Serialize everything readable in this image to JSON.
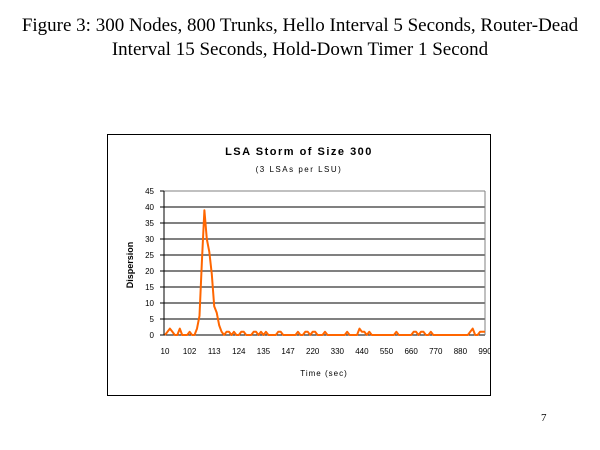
{
  "figure": {
    "title": "Figure 3: 300 Nodes, 800 Trunks, Hello Interval 5 Seconds, Router-Dead Interval 15 Seconds, Hold-Down Timer 1 Second",
    "page_number": "7"
  },
  "chart_data": {
    "type": "line",
    "title": "LSA Storm of Size 300",
    "subtitle": "(3 LSAs per LSU)",
    "xlabel": "Time (sec)",
    "ylabel": "Dispersion",
    "ylim": [
      0,
      45
    ],
    "yticks": [
      0,
      5,
      10,
      15,
      20,
      25,
      30,
      35,
      40,
      45
    ],
    "xtick_labels": [
      "10",
      "102",
      "113",
      "124",
      "135",
      "147",
      "220",
      "330",
      "440",
      "550",
      "660",
      "770",
      "880",
      "990"
    ],
    "grid": "horizontal",
    "legend": "none",
    "series_color": "#ff6600",
    "series": [
      {
        "name": "Dispersion",
        "note": "values sampled across the x-axis (index = relative position 0..100)",
        "values": [
          0,
          1,
          2,
          1,
          0,
          0,
          2,
          0,
          0,
          0,
          1,
          0,
          0,
          2,
          6,
          23,
          39,
          30,
          26,
          19,
          9,
          7,
          3,
          1,
          0,
          1,
          1,
          0,
          1,
          0,
          0,
          1,
          1,
          0,
          0,
          0,
          1,
          1,
          0,
          1,
          0,
          1,
          0,
          0,
          0,
          0,
          1,
          1,
          0,
          0,
          0,
          0,
          0,
          0,
          1,
          0,
          0,
          1,
          1,
          0,
          1,
          1,
          0,
          0,
          0,
          1,
          0,
          0,
          0,
          0,
          0,
          0,
          0,
          0,
          1,
          0,
          0,
          0,
          0,
          2,
          1,
          1,
          0,
          1,
          0,
          0,
          0,
          0,
          0,
          0,
          0,
          0,
          0,
          0,
          1,
          0,
          0,
          0,
          0,
          0,
          0,
          1,
          1,
          0,
          1,
          1,
          0,
          0,
          1,
          0,
          0,
          0,
          0,
          0,
          0,
          0,
          0,
          0,
          0,
          0,
          0,
          0,
          0,
          0,
          1,
          2,
          0,
          0,
          1,
          1,
          1
        ]
      }
    ]
  }
}
